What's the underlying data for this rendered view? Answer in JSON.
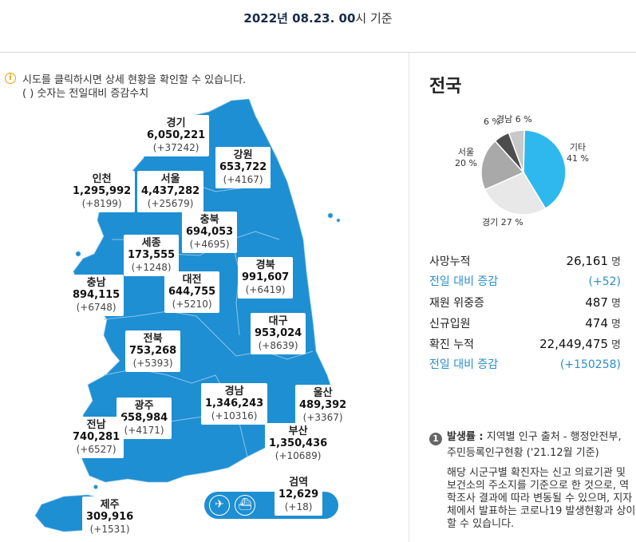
{
  "header": {
    "date_bold": "2022년 08.23. 00",
    "date_suffix": "시 기준"
  },
  "notice": {
    "line1": "시도를 클릭하시면 상세 현황을 확인할 수 있습니다.",
    "line2": "( ) 숫자는 전일대비 증감수치"
  },
  "regions": [
    {
      "key": "gyeonggi",
      "name": "경기",
      "value": "6,050,221",
      "diff": "(+37242)"
    },
    {
      "key": "gangwon",
      "name": "강원",
      "value": "653,722",
      "diff": "(+4167)"
    },
    {
      "key": "incheon",
      "name": "인천",
      "value": "1,295,992",
      "diff": "(+8199)"
    },
    {
      "key": "seoul",
      "name": "서울",
      "value": "4,437,282",
      "diff": "(+25679)"
    },
    {
      "key": "chungbuk",
      "name": "충북",
      "value": "694,053",
      "diff": "(+4695)"
    },
    {
      "key": "sejong",
      "name": "세종",
      "value": "173,555",
      "diff": "(+1248)"
    },
    {
      "key": "gyeongbuk",
      "name": "경북",
      "value": "991,607",
      "diff": "(+6419)"
    },
    {
      "key": "chungnam",
      "name": "충남",
      "value": "894,115",
      "diff": "(+6748)"
    },
    {
      "key": "daejeon",
      "name": "대전",
      "value": "644,755",
      "diff": "(+5210)"
    },
    {
      "key": "daegu",
      "name": "대구",
      "value": "953,024",
      "diff": "(+8639)"
    },
    {
      "key": "jeonbuk",
      "name": "전북",
      "value": "753,268",
      "diff": "(+5393)"
    },
    {
      "key": "gyeongnam",
      "name": "경남",
      "value": "1,346,243",
      "diff": "(+10316)"
    },
    {
      "key": "ulsan",
      "name": "울산",
      "value": "489,392",
      "diff": "(+3367)"
    },
    {
      "key": "gwangju",
      "name": "광주",
      "value": "658,984",
      "diff": "(+4171)"
    },
    {
      "key": "jeonnam",
      "name": "전남",
      "value": "740,281",
      "diff": "(+6527)"
    },
    {
      "key": "busan",
      "name": "부산",
      "value": "1,350,436",
      "diff": "(+10689)"
    },
    {
      "key": "quarantine",
      "name": "검역",
      "value": "12,629",
      "diff": "(+18)"
    },
    {
      "key": "jeju",
      "name": "제주",
      "value": "309,916",
      "diff": "(+1531)"
    }
  ],
  "airport_icons": [
    "airplane-icon",
    "ship-icon"
  ],
  "summary": {
    "title": "전국",
    "pie": [
      {
        "label": "기타",
        "percent": 41,
        "pct_text": "41 %",
        "color": "#2fb8ee"
      },
      {
        "label": "경기",
        "percent": 27,
        "pct_text": "27 %",
        "color": "#e8e8e8"
      },
      {
        "label": "서울",
        "percent": 20,
        "pct_text": "20 %",
        "color": "#a9a9a9"
      },
      {
        "label": "",
        "percent": 6,
        "pct_text": "6 %",
        "color": "#4d4d4d"
      },
      {
        "label": "경남",
        "percent": 6,
        "pct_text": "6 %",
        "color": "#c8c8c8"
      }
    ],
    "stats": [
      {
        "label": "사망누적",
        "value": "26,161",
        "unit": "명",
        "type": "main"
      },
      {
        "label": "전일 대비 증감",
        "value": "(+52)",
        "unit": "",
        "type": "diff"
      },
      {
        "label": "재원 위중증",
        "value": "487",
        "unit": "명",
        "type": "main"
      },
      {
        "label": "신규입원",
        "value": "474",
        "unit": "명",
        "type": "main"
      },
      {
        "label": "확진 누적",
        "value": "22,449,475",
        "unit": "명",
        "type": "main"
      },
      {
        "label": "전일 대비 증감",
        "value": "(+150258)",
        "unit": "",
        "type": "diff"
      }
    ]
  },
  "footnote": {
    "num": "1",
    "head_bold": "발생률 :",
    "head_text": " 지역별 인구 출처 - 행정안전부,",
    "cont": "주민등록인구현황 ('21.12월 기준)",
    "note": "해당 시군구별 확진자는 신고 의료기관 및 보건소의 주소지를 기준으로 한 것으로, 역학조사 결과에 따라 변동될 수 있으며, 지자체에서 발표하는 코로나19 발생현황과 상이할 수 있습니다."
  }
}
